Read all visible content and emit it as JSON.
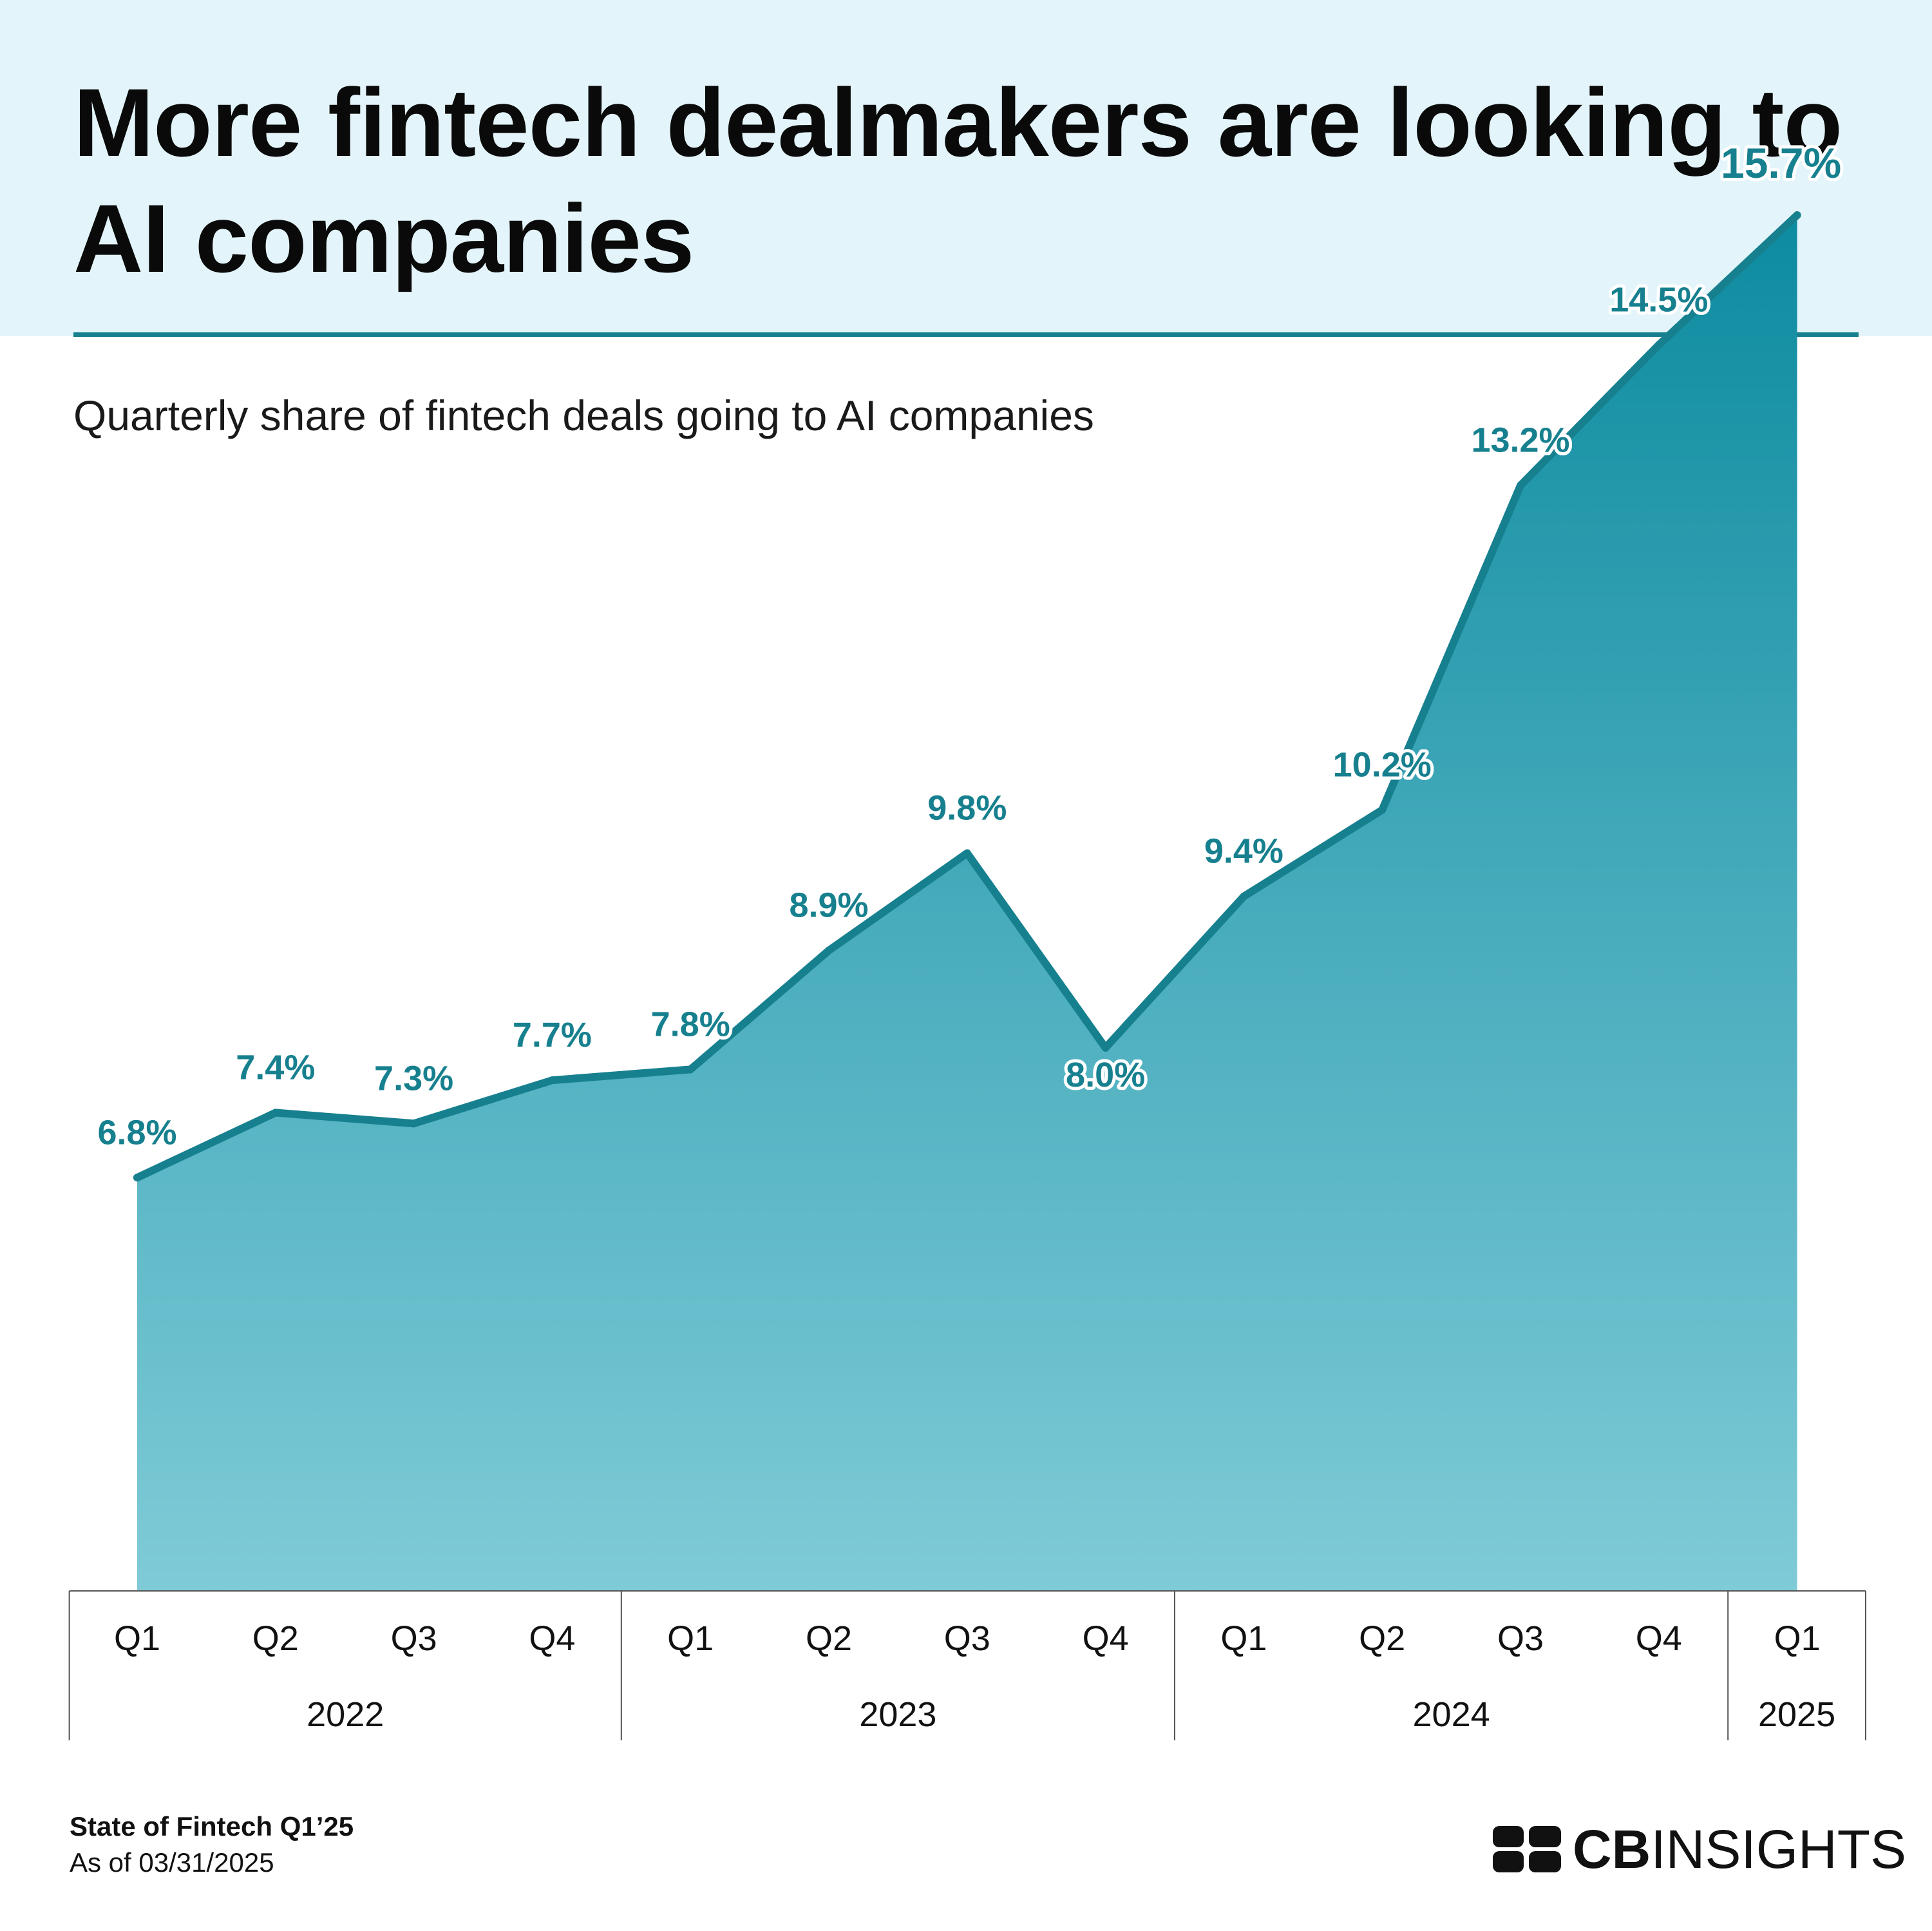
{
  "header": {
    "title": "More fintech dealmakers are looking to AI companies",
    "subtitle": "Quarterly share of fintech deals going to AI companies"
  },
  "footer": {
    "source": "State of Fintech Q1’25",
    "as_of": "As of 03/31/2025",
    "logo_bold": "CB",
    "logo_light": "INSIGHTS"
  },
  "colors": {
    "accent": "#17808f",
    "area_top": "#0d8ba0",
    "area_bottom": "#7fcbd7",
    "header_bg": "#e3f5fa"
  },
  "chart_data": {
    "type": "area",
    "categories": [
      "Q1",
      "Q2",
      "Q3",
      "Q4",
      "Q1",
      "Q2",
      "Q3",
      "Q4",
      "Q1",
      "Q2",
      "Q3",
      "Q4",
      "Q1"
    ],
    "years": [
      {
        "label": "2022",
        "count": 4
      },
      {
        "label": "2023",
        "count": 4
      },
      {
        "label": "2024",
        "count": 4
      },
      {
        "label": "2025",
        "count": 1
      }
    ],
    "values": [
      6.8,
      7.4,
      7.3,
      7.7,
      7.8,
      8.9,
      9.8,
      8.0,
      9.4,
      10.2,
      13.2,
      14.5,
      15.7
    ],
    "value_labels": [
      "6.8%",
      "7.4%",
      "7.3%",
      "7.7%",
      "7.8%",
      "8.9%",
      "9.8%",
      "8.0%",
      "9.4%",
      "10.2%",
      "13.2%",
      "14.5%",
      "15.7%"
    ],
    "unit": "%",
    "grid": false,
    "legend": "none"
  }
}
